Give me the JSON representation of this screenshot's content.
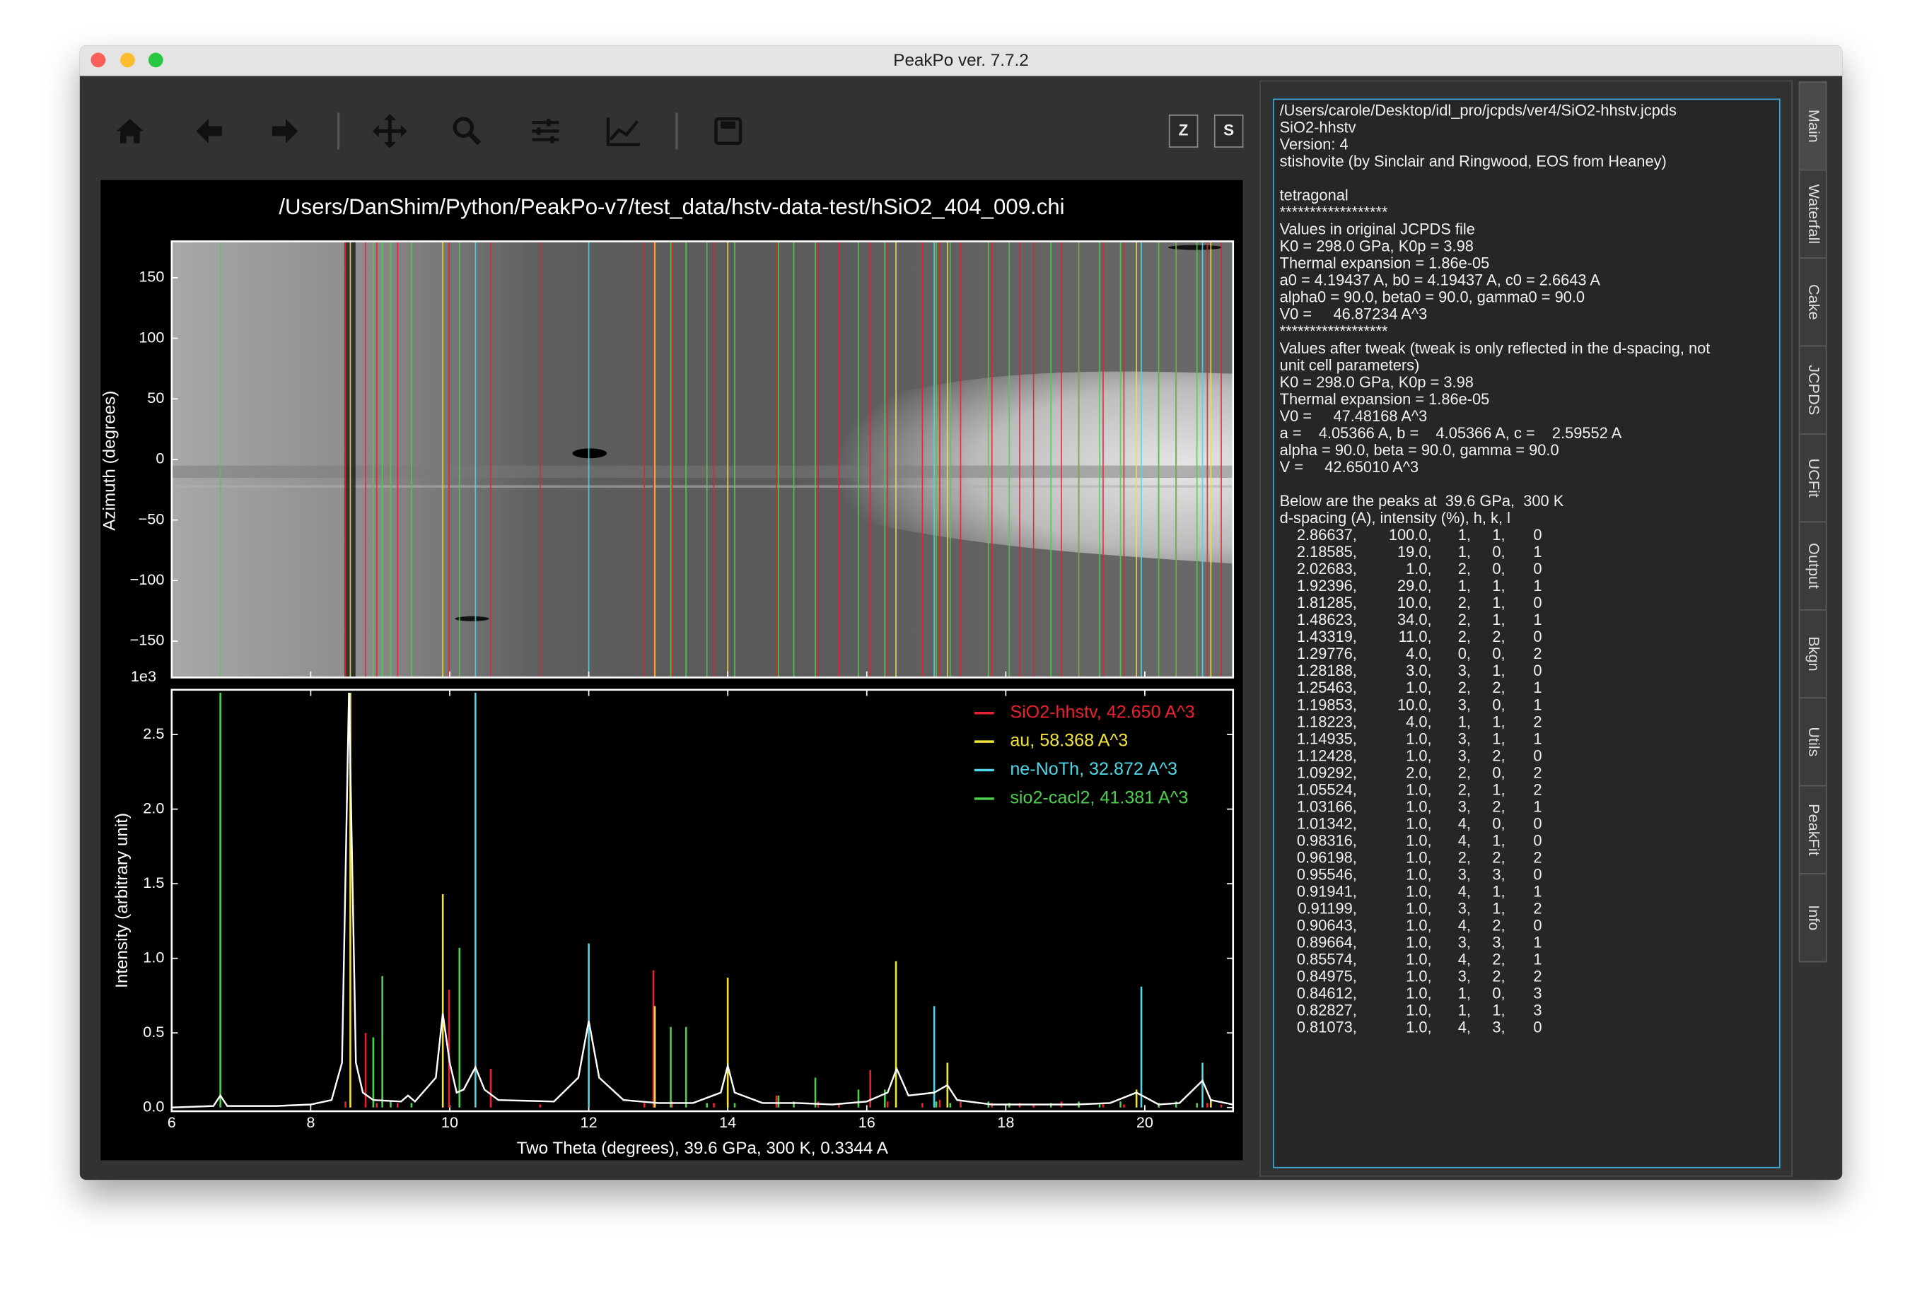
{
  "window": {
    "title": "PeakPo ver. 7.7.2"
  },
  "toolbar": {
    "buttons": [
      "Z",
      "S"
    ]
  },
  "chart_data": {
    "type": "diffraction",
    "title": "/Users/DanShim/Python/PeakPo-v7/test_data/hstv-data-test/hSiO2_404_009.chi",
    "cake": {
      "ylabel": "Azimuth (degrees)",
      "ylim": [
        -180,
        180
      ],
      "yticks": [
        150,
        100,
        50,
        0,
        {
          "value": -50,
          "label": "−50"
        },
        {
          "value": -100,
          "label": "−100"
        },
        {
          "value": -150,
          "label": "−150"
        }
      ]
    },
    "xlabel": "Two Theta (degrees),  39.6 GPa,  300 K,  0.3344 A",
    "ylabel": "Intensity (arbitrary unit)",
    "y_multiplier": "1e3",
    "xlim": [
      6,
      21.27
    ],
    "xticks": [
      6,
      8,
      10,
      12,
      14,
      16,
      18,
      20
    ],
    "ylim": [
      -0.025,
      2.8
    ],
    "yticks": [
      {
        "value": 0,
        "label": "0.0"
      },
      0.5,
      {
        "value": 1,
        "label": "1.0"
      },
      1.5,
      {
        "value": 2,
        "label": "2.0"
      },
      2.5
    ],
    "pattern": {
      "color": "#ffffff",
      "x": [
        6.0,
        6.6,
        6.7,
        6.8,
        7.5,
        8.0,
        8.3,
        8.45,
        8.55,
        8.65,
        8.75,
        8.9,
        9.3,
        9.4,
        9.5,
        9.8,
        9.9,
        10.0,
        10.1,
        10.2,
        10.37,
        10.5,
        10.7,
        11.5,
        11.85,
        12.0,
        12.15,
        12.5,
        13.0,
        13.5,
        13.9,
        14.0,
        14.1,
        14.5,
        15.0,
        15.5,
        16.0,
        16.3,
        16.43,
        16.6,
        16.97,
        17.16,
        17.3,
        17.8,
        18.5,
        19.0,
        19.5,
        19.88,
        20.0,
        20.2,
        20.5,
        20.83,
        20.95,
        21.27
      ],
      "values": [
        0.0,
        0.01,
        0.08,
        0.01,
        0.01,
        0.02,
        0.05,
        0.3,
        2.78,
        0.3,
        0.1,
        0.05,
        0.04,
        0.08,
        0.04,
        0.2,
        0.63,
        0.3,
        0.1,
        0.12,
        0.27,
        0.12,
        0.05,
        0.04,
        0.2,
        0.58,
        0.2,
        0.05,
        0.03,
        0.03,
        0.1,
        0.28,
        0.1,
        0.03,
        0.03,
        0.02,
        0.04,
        0.1,
        0.26,
        0.08,
        0.1,
        0.15,
        0.05,
        0.02,
        0.02,
        0.02,
        0.03,
        0.1,
        0.07,
        0.02,
        0.03,
        0.18,
        0.05,
        0.02
      ]
    },
    "series": [
      {
        "name": "SiO2-hhstv, 42.650 A^3",
        "color": "#e8202f",
        "x": [
          8.5,
          8.79,
          8.95,
          9.25,
          9.99,
          10.59,
          11.3,
          12.8,
          12.93,
          13.2,
          13.8,
          14.7,
          15.3,
          15.6,
          16.05,
          16.3,
          16.8,
          17.05,
          17.35,
          17.8,
          18.2,
          18.4,
          18.8,
          19.05,
          19.4,
          19.7,
          20.2,
          20.45,
          20.9,
          21.1
        ],
        "values": [
          0.04,
          0.5,
          0.03,
          0.03,
          0.79,
          0.26,
          0.02,
          0.03,
          0.92,
          0.04,
          0.03,
          0.08,
          0.04,
          0.03,
          0.25,
          0.04,
          0.03,
          0.05,
          0.04,
          0.03,
          0.03,
          0.02,
          0.04,
          0.03,
          0.03,
          0.02,
          0.03,
          0.02,
          0.03,
          0.02
        ]
      },
      {
        "name": "au, 58.368 A^3",
        "color": "#f2e33a",
        "x": [
          8.57,
          9.9,
          12.95,
          14.0,
          16.42,
          17.16,
          19.88,
          20.95
        ],
        "values": [
          2.78,
          1.43,
          0.68,
          0.87,
          0.98,
          0.3,
          0.12,
          0.05
        ]
      },
      {
        "name": "ne-NoTh, 32.872 A^3",
        "color": "#4fd6e6",
        "x": [
          10.37,
          12.0,
          16.97,
          19.95,
          20.83
        ],
        "values": [
          2.78,
          1.1,
          0.68,
          0.81,
          0.3
        ]
      },
      {
        "name": "sio2-cacl2, 41.381 A^3",
        "color": "#4ccf4c",
        "x": [
          6.7,
          8.9,
          9.03,
          9.15,
          9.45,
          10.14,
          13.18,
          13.4,
          13.7,
          14.1,
          14.73,
          14.95,
          15.26,
          15.88,
          16.26,
          17.0,
          17.2,
          17.75,
          18.05,
          18.65,
          19.05,
          19.35,
          19.65,
          20.2,
          20.45,
          20.75
        ],
        "values": [
          2.78,
          0.47,
          0.88,
          0.04,
          0.03,
          1.07,
          0.54,
          0.54,
          0.03,
          0.03,
          0.08,
          0.04,
          0.2,
          0.12,
          0.12,
          0.04,
          0.03,
          0.04,
          0.03,
          0.03,
          0.04,
          0.03,
          0.04,
          0.03,
          0.04,
          0.03
        ]
      }
    ]
  },
  "info_panel": {
    "blocks": [
      [
        "/Users/carole/Desktop/idl_pro/jcpds/ver4/SiO2-hhstv.jcpds",
        "SiO2-hhstv",
        "Version: 4",
        "stishovite (by Sinclair and Ringwood, EOS from Heaney)"
      ],
      [
        "tetragonal",
        "******************",
        "Values in original JCPDS file",
        "K0 = 298.0 GPa, K0p = 3.98",
        "Thermal expansion = 1.86e-05",
        "a0 = 4.19437 A, b0 = 4.19437 A, c0 = 2.6643 A",
        "alpha0 = 90.0, beta0 = 90.0, gamma0 = 90.0",
        "V0 =     46.87234 A^3",
        "******************",
        "Values after tweak (tweak is only reflected in the d-spacing, not",
        "unit cell parameters)",
        "K0 = 298.0 GPa, K0p = 3.98",
        "Thermal expansion = 1.86e-05",
        "V0 =     47.48168 A^3",
        "a =    4.05366 A, b =    4.05366 A, c =    2.59552 A",
        "alpha = 90.0, beta = 90.0, gamma = 90.0",
        "V =     42.65010 A^3"
      ],
      [
        "Below are the peaks at  39.6 GPa,  300 K",
        "d-spacing (A), intensity (%), h, k, l"
      ]
    ],
    "peaks": [
      [
        "2.86637,",
        "100.0,",
        "1,",
        "1,",
        "0"
      ],
      [
        "2.18585,",
        "19.0,",
        "1,",
        "0,",
        "1"
      ],
      [
        "2.02683,",
        "1.0,",
        "2,",
        "0,",
        "0"
      ],
      [
        "1.92396,",
        "29.0,",
        "1,",
        "1,",
        "1"
      ],
      [
        "1.81285,",
        "10.0,",
        "2,",
        "1,",
        "0"
      ],
      [
        "1.48623,",
        "34.0,",
        "2,",
        "1,",
        "1"
      ],
      [
        "1.43319,",
        "11.0,",
        "2,",
        "2,",
        "0"
      ],
      [
        "1.29776,",
        "4.0,",
        "0,",
        "0,",
        "2"
      ],
      [
        "1.28188,",
        "3.0,",
        "3,",
        "1,",
        "0"
      ],
      [
        "1.25463,",
        "1.0,",
        "2,",
        "2,",
        "1"
      ],
      [
        "1.19853,",
        "10.0,",
        "3,",
        "0,",
        "1"
      ],
      [
        "1.18223,",
        "4.0,",
        "1,",
        "1,",
        "2"
      ],
      [
        "1.14935,",
        "1.0,",
        "3,",
        "1,",
        "1"
      ],
      [
        "1.12428,",
        "1.0,",
        "3,",
        "2,",
        "0"
      ],
      [
        "1.09292,",
        "2.0,",
        "2,",
        "0,",
        "2"
      ],
      [
        "1.05524,",
        "1.0,",
        "2,",
        "1,",
        "2"
      ],
      [
        "1.03166,",
        "1.0,",
        "3,",
        "2,",
        "1"
      ],
      [
        "1.01342,",
        "1.0,",
        "4,",
        "0,",
        "0"
      ],
      [
        "0.98316,",
        "1.0,",
        "4,",
        "1,",
        "0"
      ],
      [
        "0.96198,",
        "1.0,",
        "2,",
        "2,",
        "2"
      ],
      [
        "0.95546,",
        "1.0,",
        "3,",
        "3,",
        "0"
      ],
      [
        "0.91941,",
        "1.0,",
        "4,",
        "1,",
        "1"
      ],
      [
        "0.91199,",
        "1.0,",
        "3,",
        "1,",
        "2"
      ],
      [
        "0.90643,",
        "1.0,",
        "4,",
        "2,",
        "0"
      ],
      [
        "0.89664,",
        "1.0,",
        "3,",
        "3,",
        "1"
      ],
      [
        "0.85574,",
        "1.0,",
        "4,",
        "2,",
        "1"
      ],
      [
        "0.84975,",
        "1.0,",
        "3,",
        "2,",
        "2"
      ],
      [
        "0.84612,",
        "1.0,",
        "1,",
        "0,",
        "3"
      ],
      [
        "0.82827,",
        "1.0,",
        "1,",
        "1,",
        "3"
      ],
      [
        "0.81073,",
        "1.0,",
        "4,",
        "3,",
        "0"
      ]
    ]
  },
  "tabs": [
    "Main",
    "Waterfall",
    "Cake",
    "JCPDS",
    "UCFit",
    "Output",
    "Bkgn",
    "Utils",
    "PeakFit",
    "Info"
  ]
}
